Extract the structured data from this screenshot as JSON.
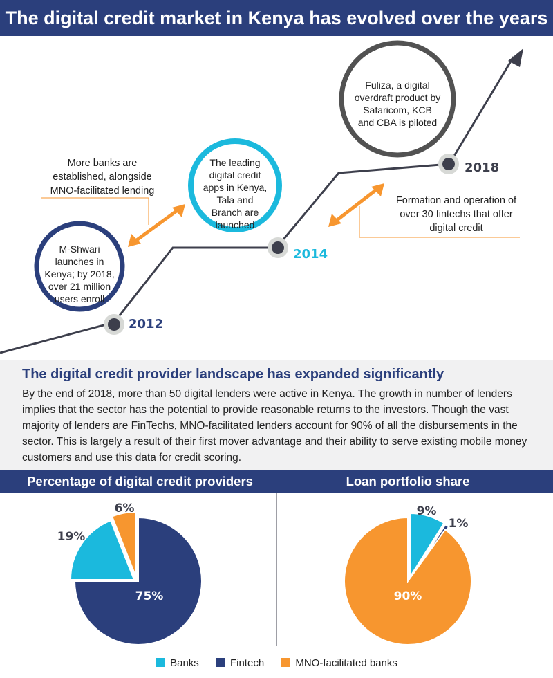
{
  "header": {
    "title": "The digital credit market in Kenya has evolved over the years"
  },
  "timeline": {
    "milestones": [
      {
        "year": "2012",
        "text": "M-Shwari launches in Kenya; by 2018, over 21 million users enroll"
      },
      {
        "year": "2014",
        "text": "The leading digital credit apps in Kenya, Tala and Branch are launched"
      },
      {
        "year": "2018",
        "text": "Fuliza, a digital overdraft product by Safaricom, KCB and CBA is piloted"
      }
    ],
    "notes": [
      "More banks are established, alongside MNO-facilitated lending",
      "Formation and operation of over 30 fintechs that offer digital credit"
    ]
  },
  "landscape": {
    "heading": "The digital credit provider landscape has expanded significantly",
    "body": "By the end of 2018, more than 50 digital lenders were active in Kenya. The growth in number of lenders implies that the sector has the potential to provide reasonable returns to the investors. Though the vast majority of lenders are FinTechs, MNO-facilitated lenders account for 90% of all the disbursements in the sector. This is largely a result of their first mover advantage and their ability to serve existing mobile money customers and use this data for credit scoring."
  },
  "colors": {
    "banks": "#1bb9dd",
    "fintech": "#2b3f7c",
    "mno": "#f7962f",
    "accent_2014": "#1bb9dd",
    "timeline_line": "#3d3f4c"
  },
  "legend": [
    {
      "label": "Banks",
      "color": "#1bb9dd"
    },
    {
      "label": "Fintech",
      "color": "#2b3f7c"
    },
    {
      "label": "MNO-facilitated banks",
      "color": "#f7962f"
    }
  ],
  "chart_data": [
    {
      "type": "pie",
      "title": "Percentage of digital credit providers",
      "slices": [
        {
          "name": "Fintech",
          "value": 75,
          "label": "75%"
        },
        {
          "name": "Banks",
          "value": 19,
          "label": "19%"
        },
        {
          "name": "MNO-facilitated banks",
          "value": 6,
          "label": "6%"
        }
      ]
    },
    {
      "type": "pie",
      "title": "Loan portfolio share",
      "slices": [
        {
          "name": "Banks",
          "value": 9,
          "label": "9%"
        },
        {
          "name": "Fintech",
          "value": 1,
          "label": "1%"
        },
        {
          "name": "MNO-facilitated banks",
          "value": 90,
          "label": "90%"
        }
      ]
    }
  ]
}
